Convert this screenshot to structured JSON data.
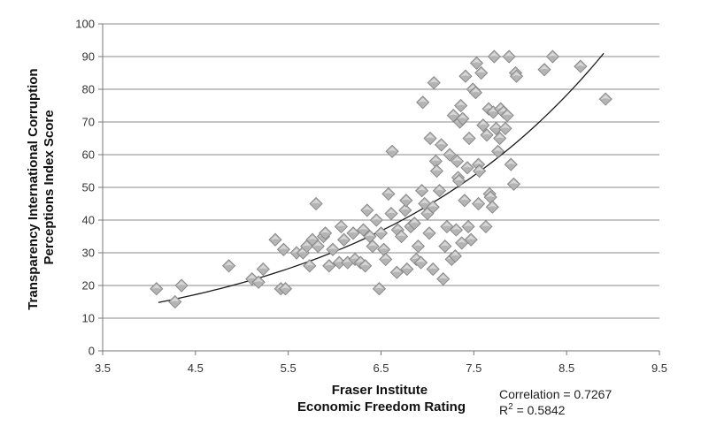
{
  "chart_data": {
    "type": "scatter",
    "title": "",
    "xlabel": [
      "Fraser Institute",
      "Economic Freedom Rating"
    ],
    "ylabel": [
      "Transparency International Corruption",
      "Perceptions Index Score"
    ],
    "xlim": [
      3.5,
      9.5
    ],
    "ylim": [
      0,
      100
    ],
    "xticks": [
      "3.5",
      "4.5",
      "5.5",
      "6.5",
      "7.5",
      "8.5",
      "9.5"
    ],
    "yticks": [
      "0",
      "10",
      "20",
      "30",
      "40",
      "50",
      "60",
      "70",
      "80",
      "90",
      "100"
    ],
    "grid": "horizontal",
    "marker": "diamond",
    "marker_color": "#b4b4b4",
    "trendline": {
      "type": "exponential",
      "x_range": [
        4.1,
        8.9
      ],
      "y_start": 14.8,
      "y_end": 91.0
    },
    "annotations": {
      "correlation": "Correlation = 0.7267",
      "r2_prefix": "R",
      "r2_exponent": "2",
      "r2_value": " = 0.5842"
    },
    "points": [
      [
        4.08,
        19
      ],
      [
        4.28,
        15
      ],
      [
        4.35,
        20
      ],
      [
        4.86,
        26
      ],
      [
        5.11,
        22
      ],
      [
        5.18,
        21
      ],
      [
        5.23,
        25
      ],
      [
        5.36,
        34
      ],
      [
        5.42,
        19
      ],
      [
        5.45,
        31
      ],
      [
        5.47,
        19
      ],
      [
        5.59,
        30
      ],
      [
        5.66,
        30
      ],
      [
        5.7,
        32
      ],
      [
        5.73,
        26
      ],
      [
        5.76,
        34
      ],
      [
        5.8,
        45
      ],
      [
        5.82,
        32
      ],
      [
        5.88,
        35
      ],
      [
        5.9,
        36
      ],
      [
        5.94,
        26
      ],
      [
        5.98,
        31
      ],
      [
        6.05,
        27
      ],
      [
        6.07,
        38
      ],
      [
        6.1,
        34
      ],
      [
        6.14,
        27
      ],
      [
        6.2,
        36
      ],
      [
        6.22,
        28
      ],
      [
        6.28,
        27
      ],
      [
        6.31,
        37
      ],
      [
        6.33,
        26
      ],
      [
        6.35,
        43
      ],
      [
        6.38,
        35
      ],
      [
        6.41,
        32
      ],
      [
        6.45,
        40
      ],
      [
        6.48,
        19
      ],
      [
        6.5,
        36
      ],
      [
        6.53,
        31
      ],
      [
        6.55,
        28
      ],
      [
        6.58,
        48
      ],
      [
        6.61,
        42
      ],
      [
        6.62,
        61
      ],
      [
        6.67,
        24
      ],
      [
        6.68,
        37
      ],
      [
        6.72,
        35
      ],
      [
        6.76,
        43
      ],
      [
        6.77,
        46
      ],
      [
        6.78,
        25
      ],
      [
        6.82,
        38
      ],
      [
        6.86,
        39
      ],
      [
        6.88,
        28
      ],
      [
        6.9,
        32
      ],
      [
        6.93,
        27
      ],
      [
        6.94,
        49
      ],
      [
        6.95,
        76
      ],
      [
        6.97,
        45
      ],
      [
        7.0,
        42
      ],
      [
        7.02,
        36
      ],
      [
        7.03,
        65
      ],
      [
        7.06,
        44
      ],
      [
        7.06,
        25
      ],
      [
        7.07,
        82
      ],
      [
        7.09,
        58
      ],
      [
        7.1,
        55
      ],
      [
        7.13,
        49
      ],
      [
        7.15,
        63
      ],
      [
        7.17,
        22
      ],
      [
        7.19,
        32
      ],
      [
        7.21,
        38
      ],
      [
        7.24,
        60
      ],
      [
        7.26,
        28
      ],
      [
        7.28,
        72
      ],
      [
        7.3,
        29
      ],
      [
        7.31,
        37
      ],
      [
        7.32,
        58
      ],
      [
        7.33,
        53
      ],
      [
        7.34,
        52
      ],
      [
        7.35,
        70
      ],
      [
        7.36,
        75
      ],
      [
        7.37,
        33
      ],
      [
        7.38,
        71
      ],
      [
        7.4,
        46
      ],
      [
        7.41,
        84
      ],
      [
        7.43,
        56
      ],
      [
        7.44,
        38
      ],
      [
        7.45,
        65
      ],
      [
        7.47,
        34
      ],
      [
        7.49,
        80
      ],
      [
        7.52,
        79
      ],
      [
        7.53,
        88
      ],
      [
        7.55,
        57
      ],
      [
        7.55,
        45
      ],
      [
        7.56,
        55
      ],
      [
        7.58,
        85
      ],
      [
        7.6,
        69
      ],
      [
        7.63,
        38
      ],
      [
        7.64,
        66
      ],
      [
        7.66,
        74
      ],
      [
        7.67,
        48
      ],
      [
        7.68,
        47
      ],
      [
        7.7,
        44
      ],
      [
        7.71,
        73
      ],
      [
        7.72,
        90
      ],
      [
        7.74,
        68
      ],
      [
        7.76,
        61
      ],
      [
        7.78,
        65
      ],
      [
        7.79,
        74
      ],
      [
        7.82,
        73
      ],
      [
        7.84,
        68
      ],
      [
        7.86,
        72
      ],
      [
        7.88,
        90
      ],
      [
        7.9,
        57
      ],
      [
        7.93,
        51
      ],
      [
        7.95,
        85
      ],
      [
        7.96,
        84
      ],
      [
        8.26,
        86
      ],
      [
        8.35,
        90
      ],
      [
        8.65,
        87
      ],
      [
        8.92,
        77
      ]
    ]
  }
}
